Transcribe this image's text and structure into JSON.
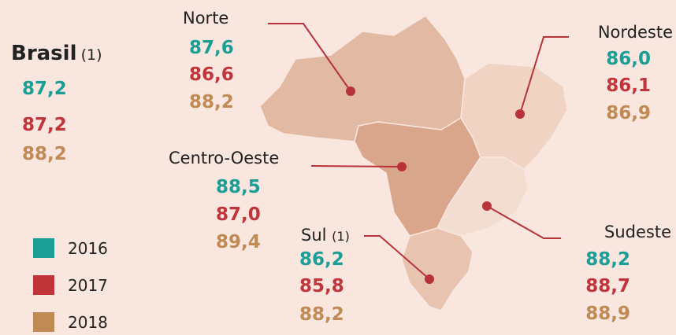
{
  "national": {
    "name": "Brasil",
    "note": "(1)",
    "values": [
      "87,2",
      "87,2",
      "88,2"
    ]
  },
  "regions": [
    {
      "name": "Norte",
      "values": [
        "87,6",
        "86,6",
        "88,2"
      ]
    },
    {
      "name": "Nordeste",
      "values": [
        "86,0",
        "86,1",
        "86,9"
      ]
    },
    {
      "name": "Centro-Oeste",
      "values": [
        "88,5",
        "87,0",
        "89,4"
      ]
    },
    {
      "name": "Sul",
      "note": "(1)",
      "values": [
        "86,2",
        "85,8",
        "88,2"
      ]
    },
    {
      "name": "Sudeste",
      "values": [
        "88,2",
        "88,7",
        "88,9"
      ]
    }
  ],
  "legend": [
    {
      "label": "2016",
      "color": "#1a9e96"
    },
    {
      "label": "2017",
      "color": "#c0343a"
    },
    {
      "label": "2018",
      "color": "#c08a55"
    }
  ]
}
